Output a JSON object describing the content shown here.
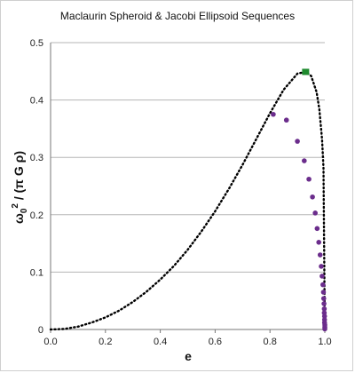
{
  "chart_data": {
    "type": "scatter",
    "title": "Maclaurin Spheroid & Jacobi Ellipsoid Sequences",
    "xlabel": "e",
    "ylabel": "ω0² / (π G ρ)",
    "xlim": [
      0,
      1.0
    ],
    "ylim": [
      0,
      0.5
    ],
    "xticks": [
      "0.0",
      "0.2",
      "0.4",
      "0.6",
      "0.8",
      "1.0"
    ],
    "yticks": [
      "0",
      "0.1",
      "0.2",
      "0.3",
      "0.4",
      "0.5"
    ],
    "grid": "horizontal",
    "legend": "none",
    "series": [
      {
        "style": "dotted-line",
        "color": "#000000",
        "x": [
          0,
          0.05,
          0.1,
          0.15,
          0.2,
          0.25,
          0.3,
          0.35,
          0.4,
          0.45,
          0.5,
          0.55,
          0.6,
          0.65,
          0.7,
          0.75,
          0.8,
          0.85,
          0.9,
          0.93,
          0.95,
          0.97,
          0.98,
          0.99,
          0.995,
          1.0
        ],
        "y": [
          0,
          0.001,
          0.005,
          0.012,
          0.021,
          0.033,
          0.048,
          0.066,
          0.087,
          0.111,
          0.139,
          0.171,
          0.206,
          0.245,
          0.287,
          0.332,
          0.377,
          0.418,
          0.446,
          0.449,
          0.442,
          0.414,
          0.384,
          0.331,
          0.281,
          0
        ]
      },
      {
        "style": "markers",
        "color": "#6b2d8c",
        "x": [
          0.812,
          0.86,
          0.9,
          0.925,
          0.942,
          0.955,
          0.965,
          0.972,
          0.978,
          0.983,
          0.987,
          0.99,
          0.993,
          0.995,
          0.996,
          0.997,
          0.998,
          0.998,
          0.999,
          0.999,
          0.999,
          1.0,
          1.0,
          1.0
        ],
        "y": [
          0.375,
          0.365,
          0.328,
          0.294,
          0.262,
          0.231,
          0.203,
          0.176,
          0.152,
          0.13,
          0.11,
          0.093,
          0.078,
          0.065,
          0.054,
          0.045,
          0.036,
          0.029,
          0.023,
          0.017,
          0.012,
          0.008,
          0.004,
          0.001
        ]
      },
      {
        "style": "square-marker",
        "color": "#1f8a2e",
        "x": [
          0.93
        ],
        "y": [
          0.449
        ]
      }
    ]
  }
}
